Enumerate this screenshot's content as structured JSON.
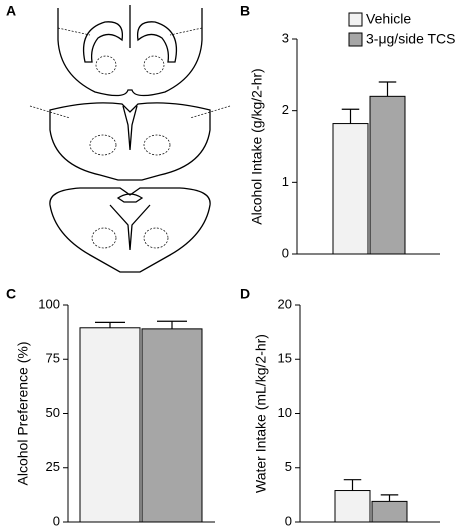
{
  "diagram": {
    "label": "A"
  },
  "chart_data": [
    {
      "type": "bar",
      "label": "B",
      "ylabel": "Alcohol Intake (g/kg/2-hr)",
      "ylim": [
        0,
        3
      ],
      "yticks": [
        0,
        1,
        2,
        3
      ],
      "legend": "upper left",
      "series": [
        {
          "name": "Vehicle",
          "color": "#f2f2f2",
          "values": [
            1.82
          ],
          "errors": [
            0.2
          ]
        },
        {
          "name": "3-μg/side TCS",
          "color": "#a6a6a6",
          "values": [
            2.2
          ],
          "errors": [
            0.2
          ]
        }
      ]
    },
    {
      "type": "bar",
      "label": "C",
      "ylabel": "Alcohol Preference (%)",
      "ylim": [
        0,
        100
      ],
      "yticks": [
        0,
        25,
        50,
        75,
        100
      ],
      "series": [
        {
          "color": "#f2f2f2",
          "values": [
            89.5
          ],
          "errors": [
            2.5
          ]
        },
        {
          "color": "#a6a6a6",
          "values": [
            89
          ],
          "errors": [
            3.5
          ]
        }
      ]
    },
    {
      "type": "bar",
      "label": "D",
      "ylabel": "Water Intake (mL/kg/2-hr)",
      "ylim": [
        0,
        20
      ],
      "yticks": [
        0,
        5,
        10,
        15,
        20
      ],
      "series": [
        {
          "color": "#f2f2f2",
          "values": [
            2.9
          ],
          "errors": [
            1.0
          ]
        },
        {
          "color": "#a6a6a6",
          "values": [
            1.9
          ],
          "errors": [
            0.6
          ]
        }
      ]
    }
  ]
}
